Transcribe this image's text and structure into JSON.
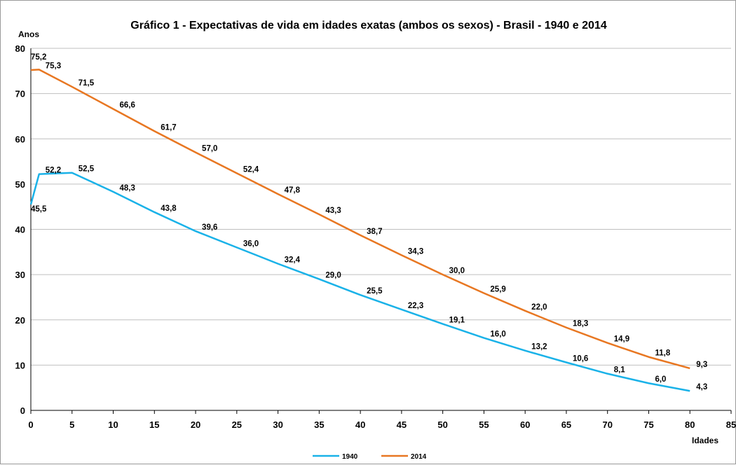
{
  "chart_data": {
    "type": "line",
    "title": "Gráfico 1 - Expectativas de vida em idades exatas (ambos os sexos) - Brasil - 1940 e 2014",
    "ylabel": "Anos",
    "xlabel": "Idades",
    "xlim": [
      0,
      85
    ],
    "ylim": [
      0,
      80
    ],
    "xticks": [
      0,
      5,
      10,
      15,
      20,
      25,
      30,
      35,
      40,
      45,
      50,
      55,
      60,
      65,
      70,
      75,
      80,
      85
    ],
    "yticks": [
      0,
      10,
      20,
      30,
      40,
      50,
      60,
      70,
      80
    ],
    "grid": "horizontal",
    "legend_position": "bottom",
    "x": [
      0,
      1,
      5,
      10,
      15,
      20,
      25,
      30,
      35,
      40,
      45,
      50,
      55,
      60,
      65,
      70,
      75,
      80
    ],
    "series": [
      {
        "name": "1940",
        "color": "#1AB2E8",
        "values": [
          45.5,
          52.2,
          52.5,
          48.3,
          43.8,
          39.6,
          36.0,
          32.4,
          29.0,
          25.5,
          22.3,
          19.1,
          16.0,
          13.2,
          10.6,
          8.1,
          6.0,
          4.3
        ],
        "labels": [
          "45,5",
          "52,2",
          "52,5",
          "48,3",
          "43,8",
          "39,6",
          "36,0",
          "32,4",
          "29,0",
          "25,5",
          "22,3",
          "19,1",
          "16,0",
          "13,2",
          "10,6",
          "8,1",
          "6,0",
          "4,3"
        ]
      },
      {
        "name": "2014",
        "color": "#E87722",
        "values": [
          75.2,
          75.3,
          71.5,
          66.6,
          61.7,
          57.0,
          52.4,
          47.8,
          43.3,
          38.7,
          34.3,
          30.0,
          25.9,
          22.0,
          18.3,
          14.9,
          11.8,
          9.3
        ],
        "labels": [
          "75,2",
          "75,3",
          "71,5",
          "66,6",
          "61,7",
          "57,0",
          "52,4",
          "47,8",
          "43,3",
          "38,7",
          "34,3",
          "30,0",
          "25,9",
          "22,0",
          "18,3",
          "14,9",
          "11,8",
          "9,3"
        ]
      }
    ]
  }
}
